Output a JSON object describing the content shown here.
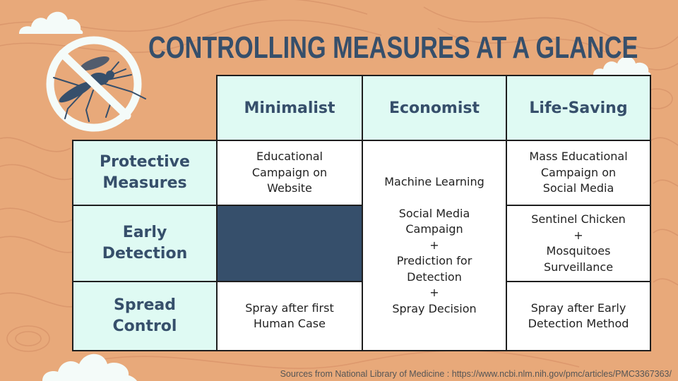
{
  "title": "CONTROLLING MEASURES AT A GLANCE",
  "colors": {
    "background": "#E8A97A",
    "title": "#364F6B",
    "header_fill": "#DFFAF3",
    "dark_cell": "#364F6B",
    "cloud": "#F4FBF9"
  },
  "icon": "no-mosquito-icon",
  "table": {
    "columns": [
      "Minimalist",
      "Economist",
      "Life-Saving"
    ],
    "rows": [
      {
        "label": "Protective\nMeasures",
        "minimalist": "Educational\nCampaign on\nWebsite",
        "life_saving": "Mass Educational\nCampaign on\nSocial Media"
      },
      {
        "label": "Early\nDetection",
        "minimalist": "",
        "life_saving": "Sentinel Chicken\n+\nMosquitoes\nSurveillance"
      },
      {
        "label": "Spread\nControl",
        "minimalist": "Spray after first\nHuman Case",
        "life_saving": "Spray after Early\nDetection Method"
      }
    ],
    "economist_merged": "Machine Learning\n\nSocial Media\nCampaign\n+\nPrediction for\nDetection\n+\nSpray Decision"
  },
  "source": "Sources from  National Library of Medicine : https://www.ncbi.nlm.nih.gov/pmc/articles/PMC3367363/"
}
